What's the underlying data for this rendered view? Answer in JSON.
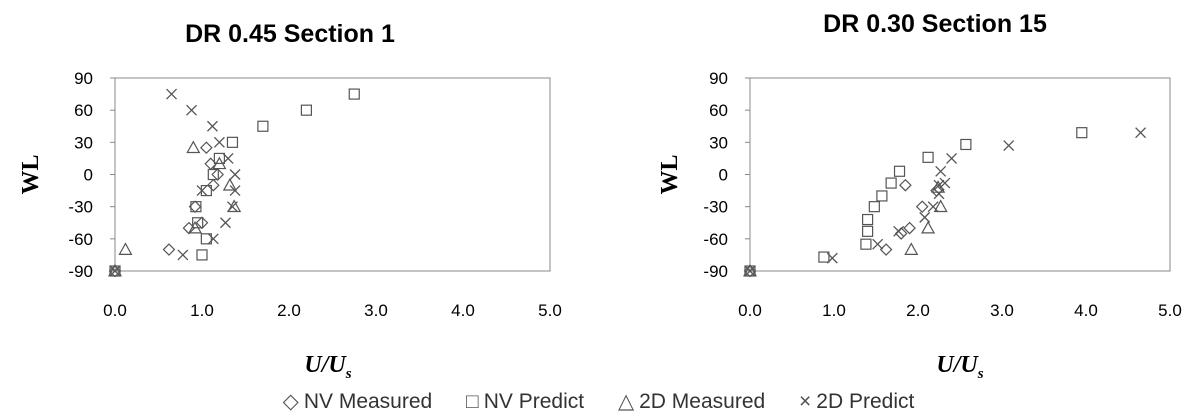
{
  "chart_data": [
    {
      "type": "scatter",
      "title": "DR 0.45 Section 1",
      "ylabel": "WL",
      "xlabel": "U/U",
      "xlabel_sub": "s",
      "xlim": [
        0,
        5
      ],
      "ylim": [
        -90,
        90
      ],
      "xticks": [
        "0.0",
        "1.0",
        "2.0",
        "3.0",
        "4.0",
        "5.0"
      ],
      "yticks": [
        "90",
        "60",
        "30",
        "0",
        "-30",
        "-60",
        "-90"
      ],
      "grid": false,
      "series": [
        {
          "name": "NV Measured",
          "marker": "diamond",
          "x": [
            0.0,
            0.62,
            0.85,
            0.92,
            1.0,
            1.05,
            1.1,
            1.13,
            1.18
          ],
          "y": [
            -90,
            -70,
            -50,
            -30,
            -45,
            25,
            10,
            -10,
            0
          ]
        },
        {
          "name": "NV Predict",
          "marker": "square",
          "x": [
            0.0,
            1.0,
            1.05,
            0.95,
            0.93,
            1.05,
            1.13,
            1.2,
            1.35,
            1.7,
            2.2,
            2.75
          ],
          "y": [
            -90,
            -75,
            -60,
            -45,
            -30,
            -15,
            0,
            15,
            30,
            45,
            60,
            75
          ]
        },
        {
          "name": "2D Measured",
          "marker": "triangle",
          "x": [
            0.0,
            0.12,
            0.92,
            0.9,
            1.2,
            1.32,
            1.37
          ],
          "y": [
            -90,
            -70,
            -50,
            25,
            10,
            -10,
            -30
          ]
        },
        {
          "name": "2D Predict",
          "marker": "cross",
          "x": [
            0.0,
            0.78,
            0.65,
            0.88,
            1.12,
            1.2,
            1.3,
            1.38,
            1.38,
            1.35,
            1.27,
            1.13,
            1.0
          ],
          "y": [
            -90,
            -75,
            75,
            60,
            45,
            30,
            15,
            0,
            -15,
            -30,
            -45,
            -60,
            -15
          ]
        }
      ]
    },
    {
      "type": "scatter",
      "title": "DR 0.30 Section 15",
      "ylabel": "WL",
      "xlabel": "U/U",
      "xlabel_sub": "s",
      "xlim": [
        0,
        5
      ],
      "ylim": [
        -90,
        90
      ],
      "xticks": [
        "0.0",
        "1.0",
        "2.0",
        "3.0",
        "4.0",
        "5.0"
      ],
      "yticks": [
        "90",
        "60",
        "30",
        "0",
        "-30",
        "-60",
        "-90"
      ],
      "grid": false,
      "series": [
        {
          "name": "NV Measured",
          "marker": "diamond",
          "x": [
            0.0,
            1.62,
            1.8,
            1.85,
            1.9,
            2.05,
            2.22
          ],
          "y": [
            -90,
            -70,
            -55,
            -10,
            -50,
            -30,
            -15
          ]
        },
        {
          "name": "NV Predict",
          "marker": "square",
          "x": [
            0.0,
            0.88,
            1.38,
            1.4,
            1.4,
            1.48,
            1.57,
            1.68,
            1.78,
            2.12,
            2.57,
            3.95
          ],
          "y": [
            -90,
            -77,
            -65,
            -53,
            -42,
            -30,
            -20,
            -8,
            3,
            16,
            28,
            39
          ]
        },
        {
          "name": "2D Measured",
          "marker": "triangle",
          "x": [
            0.0,
            1.92,
            2.12,
            2.27,
            2.24
          ],
          "y": [
            -90,
            -70,
            -50,
            -30,
            -12
          ]
        },
        {
          "name": "2D Predict",
          "marker": "cross",
          "x": [
            0.0,
            0.98,
            1.52,
            1.77,
            2.08,
            2.18,
            2.25,
            2.32,
            2.27,
            2.25,
            2.4,
            3.08,
            4.65
          ],
          "y": [
            -90,
            -78,
            -65,
            -53,
            -40,
            -30,
            -18,
            -8,
            3,
            -10,
            15,
            27,
            39
          ]
        }
      ]
    }
  ],
  "legend": [
    {
      "symbol": "◇",
      "label": "NV Measured"
    },
    {
      "symbol": "□",
      "label": "NV Predict"
    },
    {
      "symbol": "△",
      "label": "2D Measured"
    },
    {
      "symbol": "×",
      "label": "2D Predict"
    }
  ]
}
